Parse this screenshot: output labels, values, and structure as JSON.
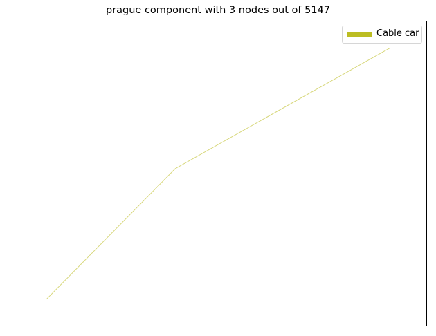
{
  "chart_data": {
    "type": "line",
    "title": "prague component with 3 nodes out of 5147",
    "xlabel": "",
    "ylabel": "",
    "axes_visible": false,
    "grid": false,
    "legend_position": "top-right",
    "series": [
      {
        "name": "Cable car",
        "color": "#bcbd22",
        "x": [
          0.0,
          0.375,
          1.0
        ],
        "y": [
          0.0,
          0.52,
          1.0
        ]
      }
    ],
    "xlim": [
      -0.105,
      1.105
    ],
    "ylim": [
      -0.105,
      1.105
    ]
  }
}
